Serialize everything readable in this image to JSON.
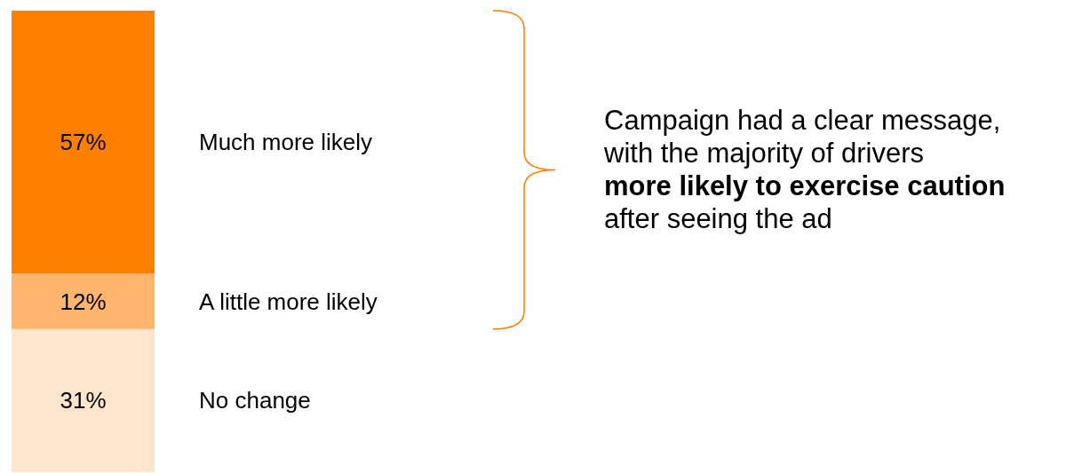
{
  "chart_data": {
    "type": "bar",
    "stacked": true,
    "categories": [
      null
    ],
    "series": [
      {
        "name": "No change",
        "color": "#ffe5cc",
        "values": [
          31
        ],
        "value_labels": [
          "31%"
        ]
      },
      {
        "name": "A little more likely",
        "color": "#ffb56b",
        "values": [
          12
        ],
        "value_labels": [
          "12%"
        ]
      },
      {
        "name": "Much more likely",
        "color": "#ff8000",
        "values": [
          57
        ],
        "value_labels": [
          "57%"
        ]
      }
    ],
    "annotations": [
      "Campaign had a clear message,",
      "with the majority of drivers",
      "more likely to exercise caution",
      "after seeing the ad"
    ]
  }
}
